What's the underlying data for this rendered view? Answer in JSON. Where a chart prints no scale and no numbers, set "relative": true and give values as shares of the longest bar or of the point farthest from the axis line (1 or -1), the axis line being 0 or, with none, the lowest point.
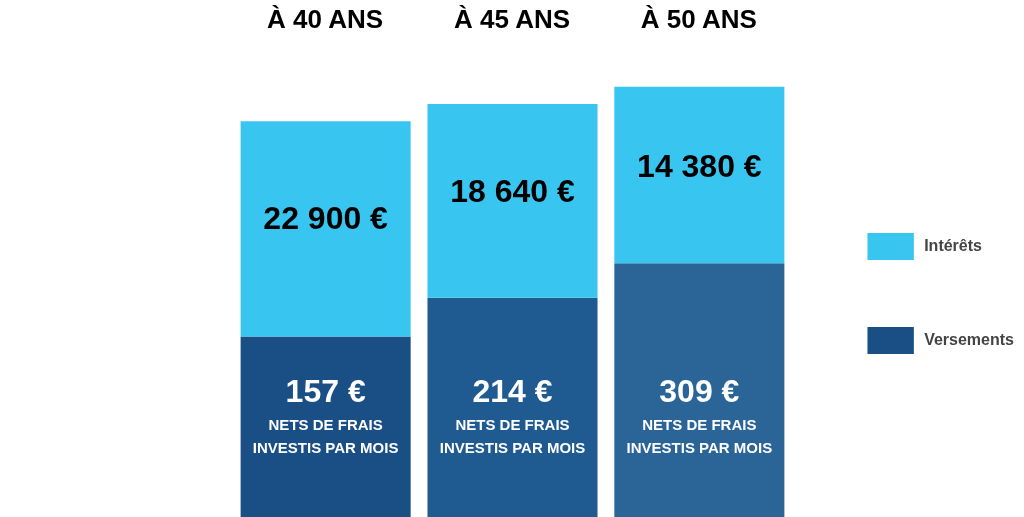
{
  "chart_data": {
    "type": "bar",
    "stacked": true,
    "relative": true,
    "legend": "right",
    "categories": [
      "À 40 ANS",
      "À 45 ANS",
      "À 50 ANS"
    ],
    "series": [
      {
        "name": "Versements",
        "color": "#1a4f86",
        "colors": [
          "#1a4f86",
          "#1f5a91",
          "#2b6597"
        ],
        "values": [
          0.42,
          0.51,
          0.59
        ]
      },
      {
        "name": "Intérêts",
        "color": "#38c6f0",
        "values": [
          0.5,
          0.45,
          0.41
        ]
      }
    ],
    "annotations": [
      "22 900 €",
      "18 640 €",
      "14 380 €",
      "157 €",
      "214 €",
      "309 €",
      "NETS DE FRAIS\nINVESTIS PAR MOIS",
      "NETS DE FRAIS\nINVESTIS PAR MOIS",
      "NETS DE FRAIS\nINVESTIS PAR MOIS"
    ]
  }
}
